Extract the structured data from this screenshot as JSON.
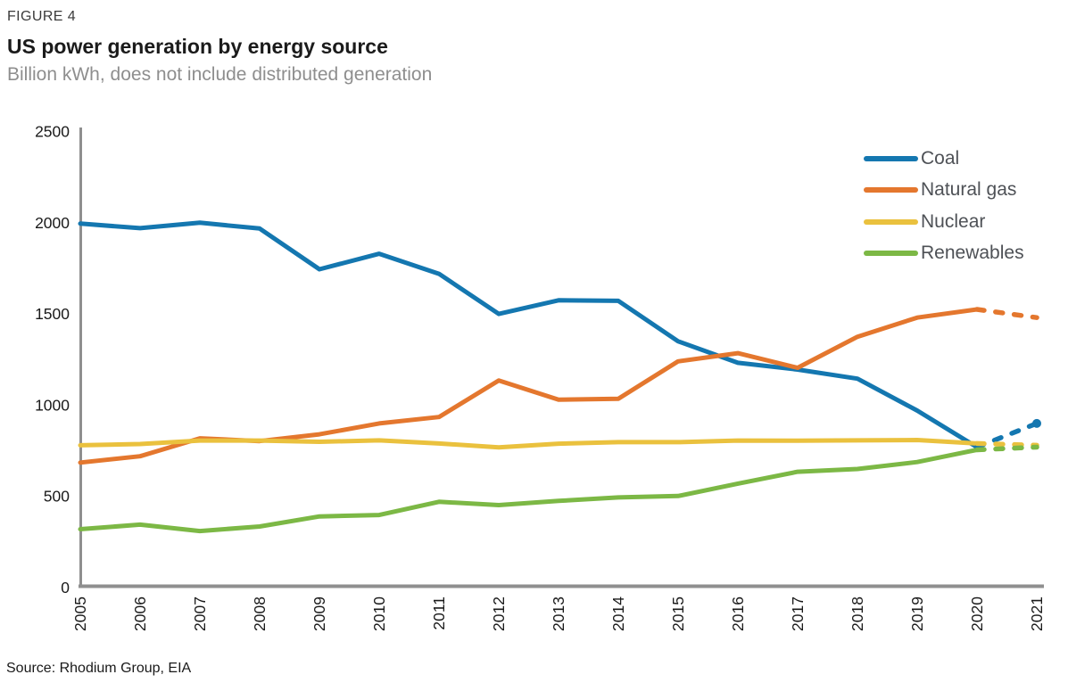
{
  "header": {
    "figure_label": "FIGURE 4",
    "title": "US power generation by energy source",
    "subtitle": "Billion kWh, does not include distributed generation"
  },
  "source_note": "Source: Rhodium Group, EIA",
  "colors": {
    "axis": "#8f8f8f",
    "tick_label": "#1a1a1a",
    "title_text": "#1b1b1b",
    "subtitle_text": "#8e8e8e",
    "legend_text": "#4e5156",
    "coal": "#1477b0",
    "natural_gas": "#e4772e",
    "nuclear": "#eac13e",
    "renewables": "#7cb845"
  },
  "chart_data": {
    "type": "line",
    "title": "US power generation by energy source",
    "subtitle": "Billion kWh, does not include distributed generation",
    "xlabel": "",
    "ylabel": "Billion kWh",
    "ylim": [
      0,
      2500
    ],
    "y_ticks": [
      0,
      500,
      1000,
      1500,
      2000,
      2500
    ],
    "grid": false,
    "legend_position": "top-right",
    "x": [
      2005,
      2006,
      2007,
      2008,
      2009,
      2010,
      2011,
      2012,
      2013,
      2014,
      2015,
      2016,
      2017,
      2018,
      2019,
      2020,
      2021
    ],
    "projection_from_year": 2020,
    "projection_style": "dashed",
    "series": [
      {
        "id": "coal",
        "name": "Coal",
        "color": "#1477b0",
        "end_dot": true,
        "values": [
          1995,
          1970,
          2000,
          1968,
          1745,
          1830,
          1720,
          1500,
          1575,
          1572,
          1350,
          1232,
          1195,
          1145,
          970,
          770,
          900
        ]
      },
      {
        "id": "natural-gas",
        "name": "Natural gas",
        "color": "#e4772e",
        "end_dot": false,
        "values": [
          685,
          720,
          818,
          803,
          840,
          900,
          935,
          1135,
          1030,
          1035,
          1240,
          1285,
          1205,
          1375,
          1480,
          1525,
          1480
        ]
      },
      {
        "id": "nuclear",
        "name": "Nuclear",
        "color": "#eac13e",
        "end_dot": false,
        "values": [
          780,
          787,
          806,
          806,
          799,
          807,
          790,
          769,
          789,
          797,
          797,
          806,
          805,
          807,
          809,
          790,
          780
        ]
      },
      {
        "id": "renewables",
        "name": "Renewables",
        "color": "#7cb845",
        "end_dot": false,
        "values": [
          320,
          345,
          310,
          335,
          390,
          398,
          470,
          452,
          475,
          494,
          502,
          570,
          635,
          650,
          688,
          755,
          770
        ]
      }
    ]
  }
}
